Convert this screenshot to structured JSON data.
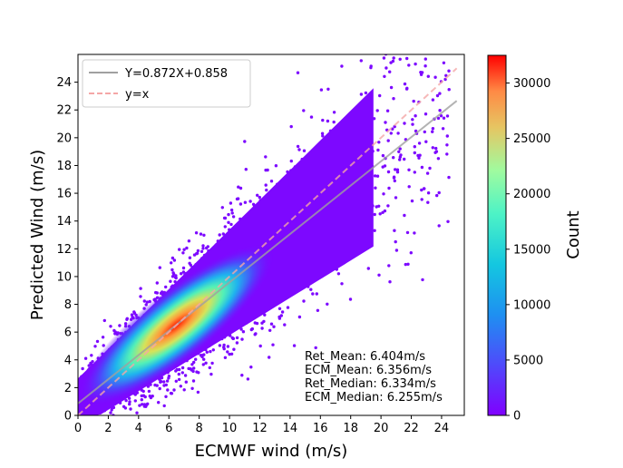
{
  "chart_data": {
    "type": "scatter",
    "title": "",
    "xlabel": "ECMWF wind (m/s)",
    "ylabel": "Predicted Wind (m/s)",
    "xlim": [
      0,
      25.5
    ],
    "ylim": [
      0,
      26
    ],
    "xticks": [
      0,
      2,
      4,
      6,
      8,
      10,
      12,
      14,
      16,
      18,
      20,
      22,
      24
    ],
    "yticks": [
      0,
      2,
      4,
      6,
      8,
      10,
      12,
      14,
      16,
      18,
      20,
      22,
      24
    ],
    "colormap": "rainbow",
    "colorbar": {
      "label": "Count",
      "min": 0,
      "max": 32500,
      "ticks": [
        0,
        5000,
        10000,
        15000,
        20000,
        25000,
        30000
      ]
    },
    "series": [
      {
        "name": "Y=0.872X+0.858",
        "kind": "fit-line",
        "slope": 0.872,
        "intercept": 0.858,
        "x_range": [
          0,
          25
        ],
        "color": "#a0a0a0",
        "dash": "solid"
      },
      {
        "name": "y=x",
        "kind": "reference-line",
        "slope": 1,
        "intercept": 0,
        "x_range": [
          0,
          25
        ],
        "color": "#f4a6a6",
        "dash": "dashed"
      }
    ],
    "density_peak": {
      "x": 6.5,
      "y": 6.5
    },
    "legend_position": "top-left",
    "annotations": [
      "Ret_Mean: 6.404m/s",
      "ECM_Mean: 6.356m/s",
      "Ret_Median: 6.334m/s",
      "ECM_Median: 6.255m/s"
    ]
  }
}
